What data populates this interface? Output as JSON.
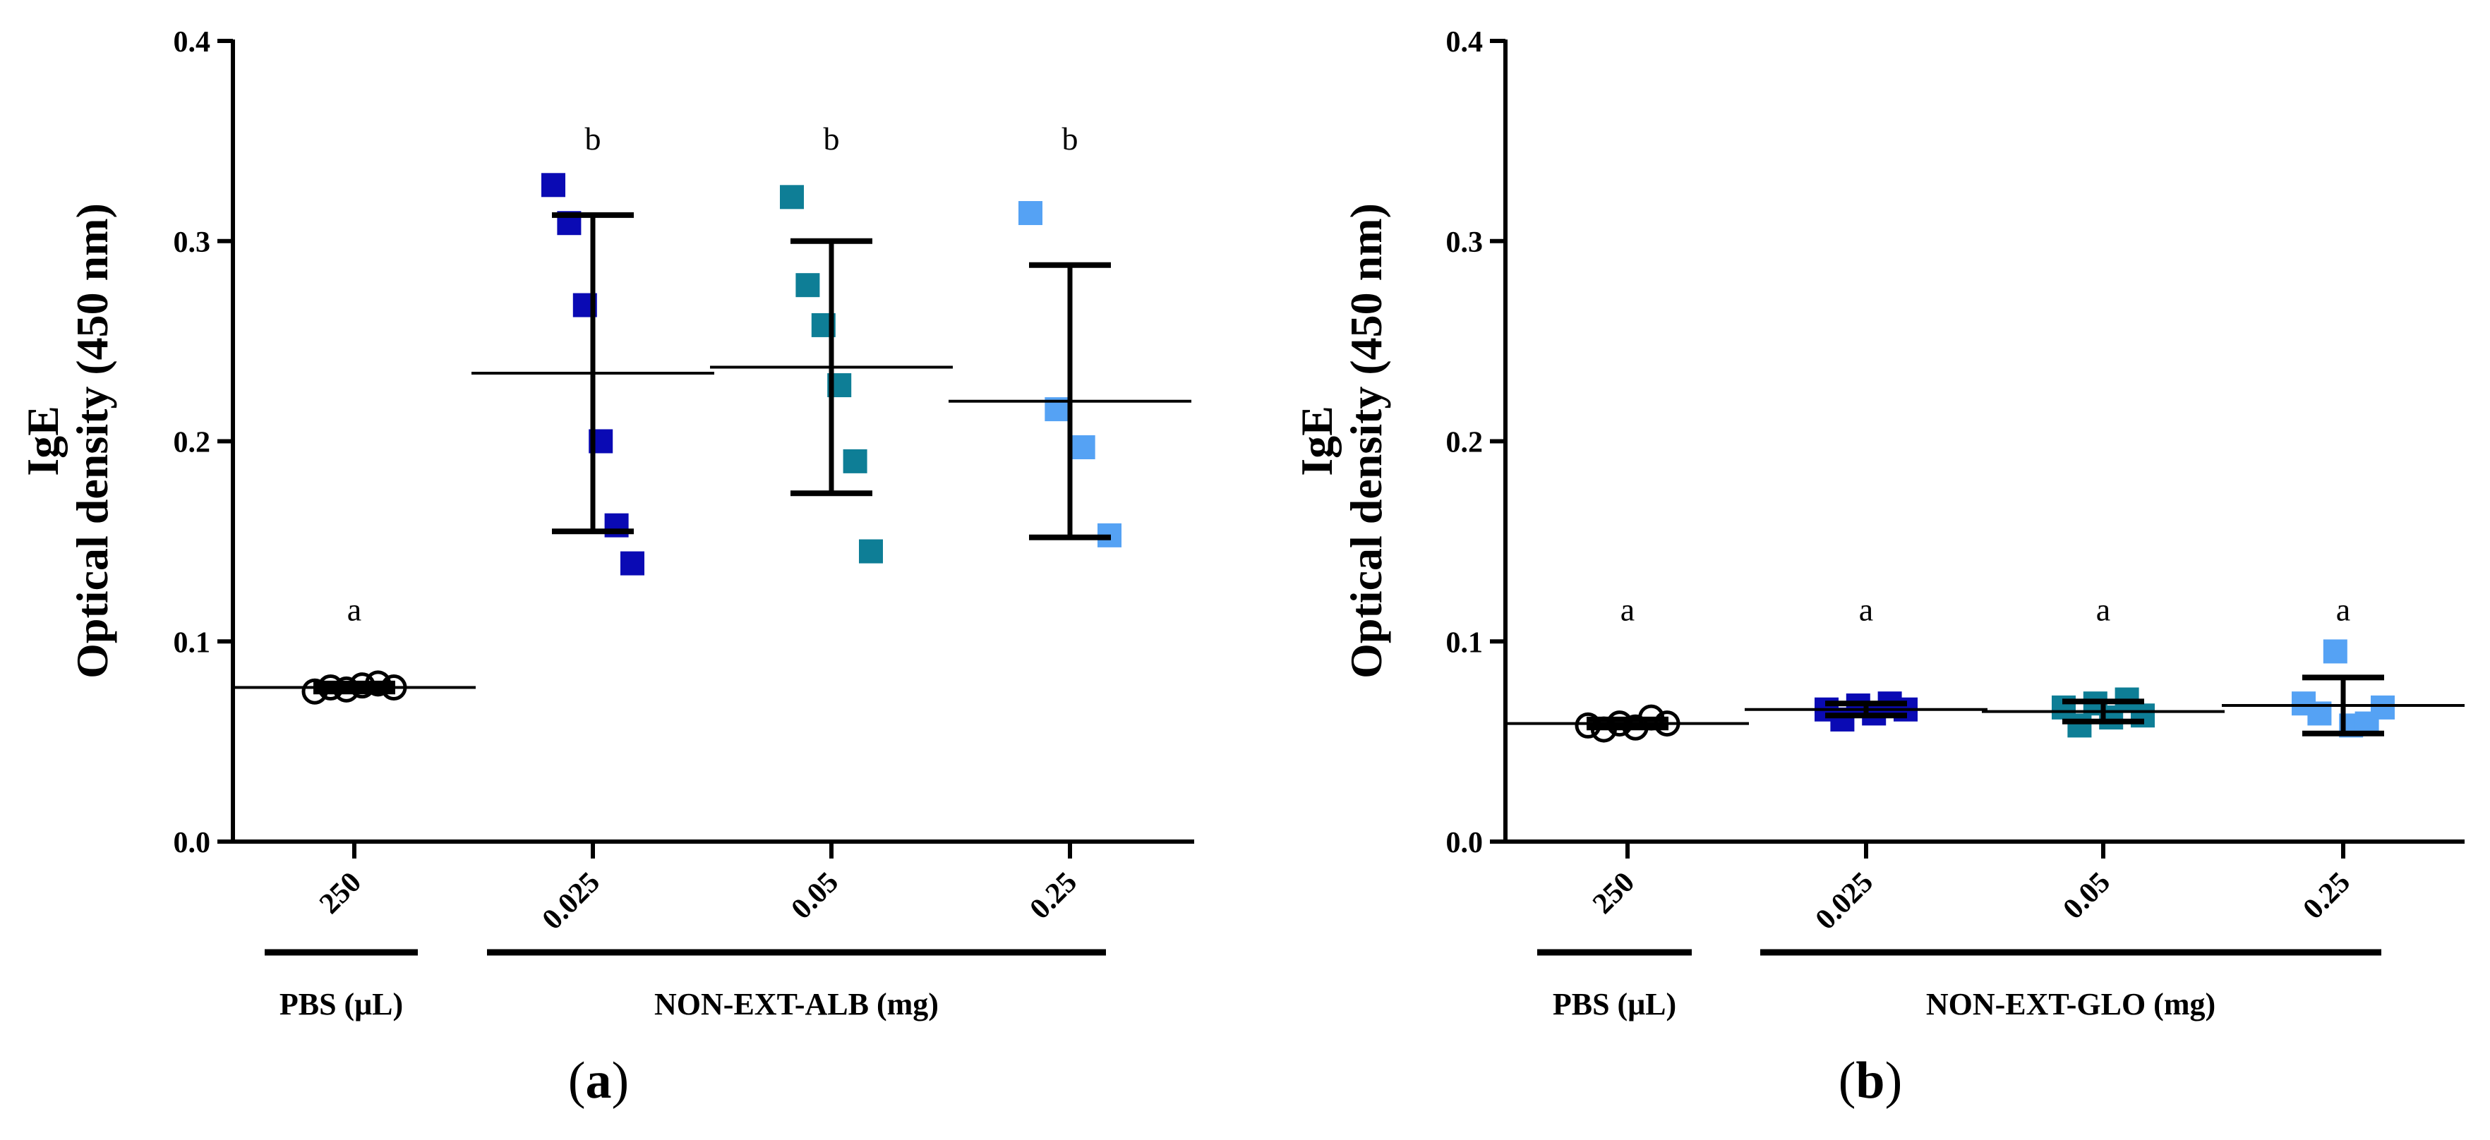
{
  "chart_data": [
    {
      "type": "scatter",
      "panel_label": "a",
      "ylabel_line1": "IgE",
      "ylabel_line2": "Optical density (450 nm)",
      "ylim": [
        0,
        0.4
      ],
      "yticks": [
        "0.0",
        "0.1",
        "0.2",
        "0.3",
        "0.4"
      ],
      "categories": [
        "250",
        "0.025",
        "0.05",
        "0.25"
      ],
      "group_labels": [
        "PBS (μL)",
        "NON-EXT-ALB (mg)"
      ],
      "series": [
        {
          "category": "250",
          "marker": "circle",
          "color": "#000000",
          "letter": "a",
          "points": [
            0.075,
            0.077,
            0.076,
            0.078,
            0.079,
            0.077
          ],
          "mean": 0.077,
          "sd": 0.002
        },
        {
          "category": "0.025",
          "marker": "square",
          "color": "#0a0ab4",
          "letter": "b",
          "points": [
            0.328,
            0.309,
            0.268,
            0.2,
            0.158,
            0.139
          ],
          "mean": 0.234,
          "sd": 0.079
        },
        {
          "category": "0.05",
          "marker": "square",
          "color": "#0e7e96",
          "letter": "b",
          "points": [
            0.322,
            0.278,
            0.258,
            0.228,
            0.19,
            0.145
          ],
          "mean": 0.237,
          "sd": 0.063
        },
        {
          "category": "0.25",
          "marker": "square",
          "color": "#55a2f4",
          "letter": "b",
          "points": [
            0.314,
            0.216,
            0.197,
            0.153
          ],
          "mean": 0.22,
          "sd": 0.068
        }
      ]
    },
    {
      "type": "scatter",
      "panel_label": "b",
      "ylabel_line1": "IgE",
      "ylabel_line2": "Optical density (450 nm)",
      "ylim": [
        0,
        0.4
      ],
      "yticks": [
        "0.0",
        "0.1",
        "0.2",
        "0.3",
        "0.4"
      ],
      "categories": [
        "250",
        "0.025",
        "0.05",
        "0.25"
      ],
      "group_labels": [
        "PBS (μL)",
        "NON-EXT-GLO (mg)"
      ],
      "series": [
        {
          "category": "250",
          "marker": "circle",
          "color": "#000000",
          "letter": "a",
          "points": [
            0.058,
            0.056,
            0.059,
            0.057,
            0.062,
            0.059
          ],
          "mean": 0.059,
          "sd": 0.002
        },
        {
          "category": "0.025",
          "marker": "square",
          "color": "#0a0ab4",
          "letter": "a",
          "points": [
            0.066,
            0.061,
            0.068,
            0.064,
            0.069,
            0.066
          ],
          "mean": 0.066,
          "sd": 0.003
        },
        {
          "category": "0.05",
          "marker": "square",
          "color": "#0e7e96",
          "letter": "a",
          "points": [
            0.067,
            0.058,
            0.069,
            0.062,
            0.071,
            0.063
          ],
          "mean": 0.065,
          "sd": 0.005
        },
        {
          "category": "0.25",
          "marker": "square",
          "color": "#55a2f4",
          "letter": "a",
          "points": [
            0.069,
            0.064,
            0.095,
            0.058,
            0.059,
            0.067
          ],
          "mean": 0.068,
          "sd": 0.014
        }
      ]
    }
  ]
}
